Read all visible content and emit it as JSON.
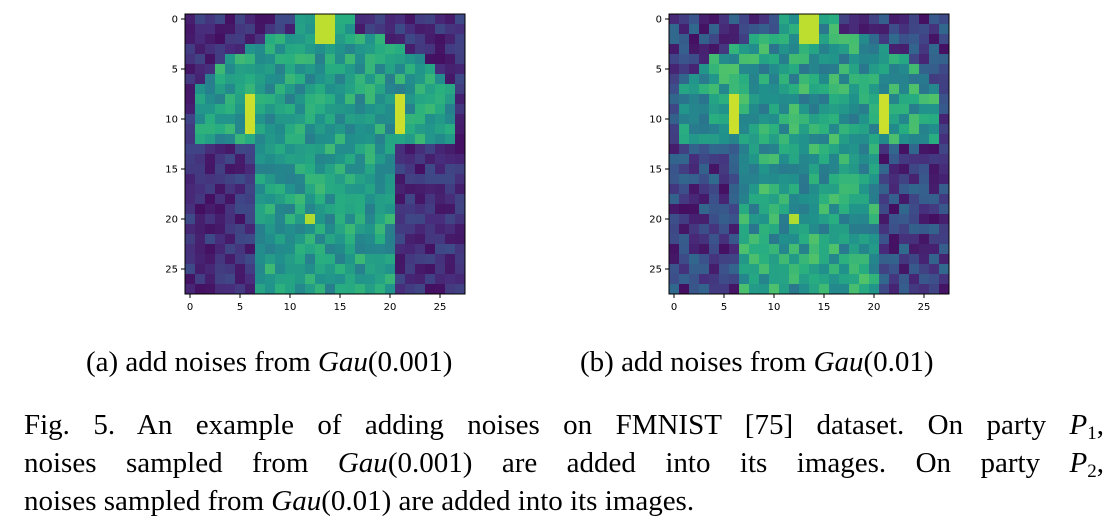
{
  "colormap": [
    "#440154",
    "#472d7b",
    "#3b528b",
    "#2c728e",
    "#21918c",
    "#28ae80",
    "#5ec962",
    "#addc30",
    "#fde725"
  ],
  "panels": [
    {
      "id": "a",
      "noise": 0.35,
      "seed": 7,
      "x_ticks": [
        "0",
        "5",
        "10",
        "15",
        "20",
        "25"
      ],
      "y_ticks": [
        "0",
        "5",
        "10",
        "15",
        "20",
        "25"
      ],
      "caption_label": "(a) add noises from",
      "caption_func": "Gau",
      "caption_arg": "(0.001)"
    },
    {
      "id": "b",
      "noise": 0.75,
      "seed": 13,
      "x_ticks": [
        "0",
        "5",
        "10",
        "15",
        "20",
        "25"
      ],
      "y_ticks": [
        "0",
        "5",
        "10",
        "15",
        "20",
        "25"
      ],
      "caption_label": "(b) add noises from",
      "caption_func": "Gau",
      "caption_arg": "(0.01)"
    }
  ],
  "figure_caption": {
    "line1_start": "Fig. 5.  An example of adding noises on FMNIST [75] dataset. On party ",
    "line1_party": "P",
    "line1_sub": "1",
    "line1_end": ",",
    "line2_start": "noises sampled from ",
    "line2_func": "Gau",
    "line2_arg": "(0.001)",
    "line2_mid": " are added into its images. On party ",
    "line2_party": "P",
    "line2_sub": "2",
    "line2_end": ",",
    "line3_start": "noises sampled from ",
    "line3_func": "Gau",
    "line3_arg": "(0.01)",
    "line3_end": " are added into its images."
  }
}
